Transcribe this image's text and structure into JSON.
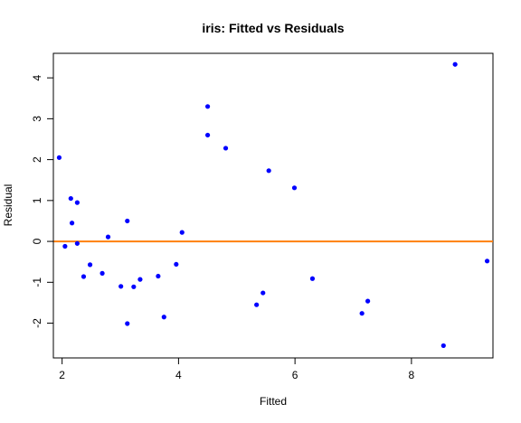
{
  "chart_data": {
    "type": "scatter",
    "title": "iris: Fitted vs Residuals",
    "xlabel": "Fitted",
    "ylabel": "Residual",
    "xlim": [
      1.85,
      9.4
    ],
    "ylim": [
      -2.85,
      4.6
    ],
    "x_ticks": [
      2,
      4,
      6,
      8
    ],
    "y_ticks": [
      -2,
      -1,
      0,
      1,
      2,
      3,
      4
    ],
    "grid": false,
    "point_color": "#0000ff",
    "reference_line": {
      "y": 0,
      "color": "#ff7f0e"
    },
    "points": [
      {
        "x": 1.95,
        "y": 2.05
      },
      {
        "x": 2.05,
        "y": -0.12
      },
      {
        "x": 2.15,
        "y": 1.05
      },
      {
        "x": 2.17,
        "y": 0.45
      },
      {
        "x": 2.26,
        "y": 0.95
      },
      {
        "x": 2.26,
        "y": -0.05
      },
      {
        "x": 2.37,
        "y": -0.86
      },
      {
        "x": 2.48,
        "y": -0.57
      },
      {
        "x": 2.69,
        "y": -0.78
      },
      {
        "x": 2.79,
        "y": 0.11
      },
      {
        "x": 3.01,
        "y": -1.1
      },
      {
        "x": 3.12,
        "y": 0.5
      },
      {
        "x": 3.12,
        "y": -2.01
      },
      {
        "x": 3.23,
        "y": -1.11
      },
      {
        "x": 3.34,
        "y": -0.93
      },
      {
        "x": 3.65,
        "y": -0.85
      },
      {
        "x": 3.75,
        "y": -1.85
      },
      {
        "x": 3.96,
        "y": -0.56
      },
      {
        "x": 4.06,
        "y": 0.22
      },
      {
        "x": 4.5,
        "y": 3.3
      },
      {
        "x": 4.5,
        "y": 2.6
      },
      {
        "x": 4.81,
        "y": 2.28
      },
      {
        "x": 5.34,
        "y": -1.55
      },
      {
        "x": 5.45,
        "y": -1.26
      },
      {
        "x": 5.55,
        "y": 1.73
      },
      {
        "x": 5.99,
        "y": 1.31
      },
      {
        "x": 6.3,
        "y": -0.91
      },
      {
        "x": 7.15,
        "y": -1.76
      },
      {
        "x": 7.25,
        "y": -1.46
      },
      {
        "x": 8.55,
        "y": -2.55
      },
      {
        "x": 8.75,
        "y": 4.33
      },
      {
        "x": 9.3,
        "y": -0.48
      }
    ]
  }
}
